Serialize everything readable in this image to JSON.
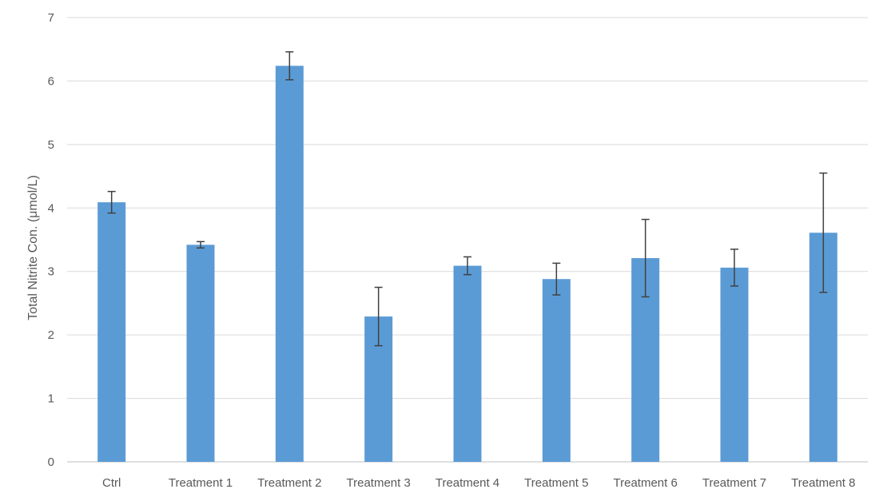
{
  "chart_data": {
    "type": "bar",
    "title": "",
    "xlabel": "",
    "ylabel": "Total Nitrite Con. (μmol/L)",
    "ylim": [
      0,
      7
    ],
    "yticks": [
      0,
      1,
      2,
      3,
      4,
      5,
      6,
      7
    ],
    "grid": true,
    "legend": "none",
    "bar_color": "#5b9bd5",
    "categories": [
      "Ctrl",
      "Treatment 1",
      "Treatment 2",
      "Treatment 3",
      "Treatment 4",
      "Treatment 5",
      "Treatment 6",
      "Treatment 7",
      "Treatment 8"
    ],
    "values": [
      4.09,
      3.42,
      6.24,
      2.29,
      3.09,
      2.88,
      3.21,
      3.06,
      3.61
    ],
    "error": [
      0.17,
      0.05,
      0.22,
      0.46,
      0.14,
      0.25,
      0.61,
      0.29,
      0.94
    ]
  }
}
